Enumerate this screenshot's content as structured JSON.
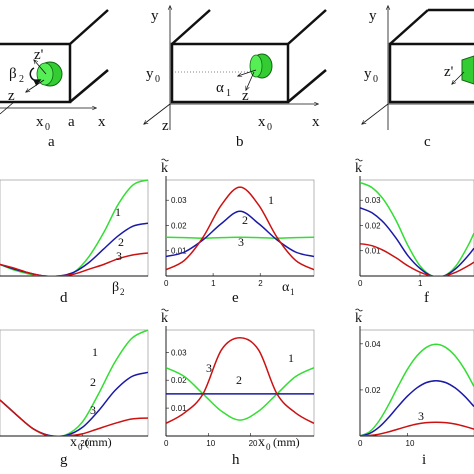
{
  "colors": {
    "green": "#33dd33",
    "blue": "#1a1aa8",
    "red": "#cc1111",
    "axis": "#111111",
    "box": "#111111"
  },
  "top_panels": [
    {
      "letter": "a",
      "labels": [
        "z'",
        "β",
        "2",
        "z",
        "x",
        "0",
        "a",
        "x"
      ]
    },
    {
      "letter": "b",
      "labels": [
        "y",
        "y",
        "0",
        "α",
        "1",
        "z",
        "z",
        "x",
        "0",
        "x"
      ]
    },
    {
      "letter": "c",
      "labels": [
        "y",
        "y",
        "0",
        "z'"
      ]
    }
  ],
  "ylabel": "k",
  "chart_data": [
    {
      "letter": "d",
      "type": "line",
      "xlabel_main": "β",
      "xlabel_sub": "2",
      "xticks": [],
      "yticks": [],
      "xlim": [
        0,
        1
      ],
      "ylim": [
        0,
        1
      ],
      "series": [
        {
          "name": "1",
          "x": [
            0,
            0.1,
            0.2,
            0.3,
            0.4,
            0.5,
            0.6,
            0.7,
            0.8,
            0.9,
            1.0
          ],
          "y": [
            0.12,
            0.06,
            0.02,
            0.0,
            0.0,
            0.04,
            0.2,
            0.45,
            0.75,
            0.95,
            1.0
          ]
        },
        {
          "name": "2",
          "x": [
            0,
            0.1,
            0.2,
            0.3,
            0.4,
            0.5,
            0.6,
            0.7,
            0.8,
            0.9,
            1.0
          ],
          "y": [
            0.12,
            0.07,
            0.03,
            0.0,
            0.0,
            0.04,
            0.14,
            0.28,
            0.42,
            0.52,
            0.55
          ]
        },
        {
          "name": "3",
          "x": [
            0,
            0.1,
            0.2,
            0.3,
            0.4,
            0.5,
            0.6,
            0.7,
            0.8,
            0.9,
            1.0
          ],
          "y": [
            0.12,
            0.08,
            0.03,
            0.0,
            0.0,
            0.02,
            0.07,
            0.12,
            0.18,
            0.22,
            0.24
          ]
        }
      ]
    },
    {
      "letter": "e",
      "type": "line",
      "xlabel_main": "α",
      "xlabel_sub": "1",
      "xticks": [
        "0",
        "1",
        "2"
      ],
      "yticks": [
        "0.01",
        "0.02",
        "0.03"
      ],
      "xlim": [
        0,
        3.1416
      ],
      "ylim": [
        0,
        0.038
      ],
      "series": [
        {
          "name": "1",
          "x": [
            0,
            0.3927,
            0.7854,
            1.1781,
            1.5708,
            1.9635,
            2.3562,
            2.7489,
            3.1416
          ],
          "y": [
            0.0153,
            0.0152,
            0.015,
            0.0152,
            0.0153,
            0.0152,
            0.015,
            0.0152,
            0.0153
          ]
        },
        {
          "name": "2",
          "x": [
            0,
            0.3927,
            0.7854,
            1.1781,
            1.5708,
            1.9635,
            2.3562,
            2.7489,
            3.1416
          ],
          "y": [
            0.0077,
            0.0095,
            0.0143,
            0.0208,
            0.0256,
            0.0208,
            0.0143,
            0.0095,
            0.0077
          ]
        },
        {
          "name": "3",
          "x": [
            0,
            0.3927,
            0.7854,
            1.1781,
            1.5708,
            1.9635,
            2.3562,
            2.7489,
            3.1416
          ],
          "y": [
            0.0025,
            0.0062,
            0.0153,
            0.0282,
            0.0352,
            0.0282,
            0.0153,
            0.0062,
            0.0025
          ]
        }
      ]
    },
    {
      "letter": "f",
      "type": "line",
      "xlabel_main": "",
      "xlabel_sub": "",
      "xticks": [
        "0",
        "1"
      ],
      "yticks": [
        "0.01",
        "0.02",
        "0.03"
      ],
      "xlim": [
        0,
        1.9
      ],
      "ylim": [
        0,
        0.038
      ],
      "series": [
        {
          "name": "",
          "x": [
            0,
            0.2,
            0.4,
            0.6,
            0.8,
            1.0,
            1.2,
            1.4,
            1.6,
            1.8,
            1.9
          ],
          "y": [
            0.037,
            0.035,
            0.03,
            0.022,
            0.012,
            0.004,
            0.0,
            0.0,
            0.004,
            0.012,
            0.017
          ]
        },
        {
          "name": "",
          "x": [
            0,
            0.2,
            0.4,
            0.6,
            0.8,
            1.0,
            1.2,
            1.4,
            1.6,
            1.8,
            1.9
          ],
          "y": [
            0.027,
            0.025,
            0.021,
            0.015,
            0.008,
            0.003,
            0.0,
            0.0,
            0.003,
            0.008,
            0.011
          ]
        },
        {
          "name": "",
          "x": [
            0,
            0.2,
            0.4,
            0.6,
            0.8,
            1.0,
            1.2,
            1.4,
            1.6,
            1.8,
            1.9
          ],
          "y": [
            0.0128,
            0.012,
            0.01,
            0.0072,
            0.004,
            0.0015,
            0.0,
            0.0,
            0.0015,
            0.004,
            0.0055
          ]
        }
      ]
    },
    {
      "letter": "g",
      "type": "line",
      "xlabel_main": "x",
      "xlabel_sub": "0",
      "xlabel_suffix": "(mm)",
      "xticks": [
        "20"
      ],
      "yticks": [],
      "xlim": [
        0,
        36
      ],
      "ylim": [
        0,
        1
      ],
      "series": [
        {
          "name": "1",
          "x": [
            0,
            4,
            8,
            12,
            16,
            20,
            24,
            28,
            32,
            36
          ],
          "y": [
            0.34,
            0.2,
            0.07,
            0.005,
            0.01,
            0.13,
            0.4,
            0.7,
            0.92,
            1.0
          ]
        },
        {
          "name": "2",
          "x": [
            0,
            4,
            8,
            12,
            16,
            20,
            24,
            28,
            32,
            36
          ],
          "y": [
            0.34,
            0.2,
            0.07,
            0.005,
            0.005,
            0.08,
            0.24,
            0.43,
            0.56,
            0.6
          ]
        },
        {
          "name": "3",
          "x": [
            0,
            4,
            8,
            12,
            16,
            20,
            24,
            28,
            32,
            36
          ],
          "y": [
            0.34,
            0.2,
            0.07,
            0.0,
            0.0,
            0.02,
            0.07,
            0.12,
            0.16,
            0.17
          ]
        }
      ]
    },
    {
      "letter": "h",
      "type": "line",
      "xlabel_main": "x",
      "xlabel_sub": "0",
      "xlabel_suffix": "(mm)",
      "xticks": [
        "0",
        "10",
        "20"
      ],
      "yticks": [
        "0.01",
        "0.02",
        "0.03"
      ],
      "xlim": [
        0,
        35
      ],
      "ylim": [
        0,
        0.038
      ],
      "series": [
        {
          "name": "1",
          "x": [
            0,
            4.375,
            8.75,
            13.125,
            17.5,
            21.875,
            26.25,
            30.625,
            35
          ],
          "y": [
            0.0245,
            0.0213,
            0.0151,
            0.0089,
            0.0057,
            0.0089,
            0.0151,
            0.0213,
            0.0245
          ]
        },
        {
          "name": "2",
          "x": [
            0,
            35
          ],
          "y": [
            0.0151,
            0.0151
          ]
        },
        {
          "name": "3",
          "x": [
            0,
            4.375,
            8.75,
            13.125,
            17.5,
            21.875,
            26.25,
            30.625,
            35
          ],
          "y": [
            0.0045,
            0.0083,
            0.0151,
            0.0309,
            0.0352,
            0.0309,
            0.0151,
            0.0083,
            0.0045
          ]
        }
      ]
    },
    {
      "letter": "i",
      "type": "line",
      "xlabel_main": "",
      "xlabel_sub": "",
      "xticks": [
        "0",
        "10"
      ],
      "yticks": [
        "0.02",
        "0.04"
      ],
      "xlim": [
        0,
        24
      ],
      "ylim": [
        0,
        0.046
      ],
      "series": [
        {
          "name": "",
          "x": [
            0,
            2,
            4,
            6,
            8,
            10,
            12,
            14,
            16,
            18,
            20,
            22,
            24
          ],
          "y": [
            0.0,
            0.0018,
            0.0065,
            0.0135,
            0.0215,
            0.029,
            0.0348,
            0.0385,
            0.0398,
            0.0385,
            0.0348,
            0.029,
            0.0215
          ]
        },
        {
          "name": "",
          "x": [
            0,
            2,
            4,
            6,
            8,
            10,
            12,
            14,
            16,
            18,
            20,
            22,
            24
          ],
          "y": [
            0.0,
            0.0011,
            0.0038,
            0.008,
            0.0128,
            0.0173,
            0.0209,
            0.0232,
            0.024,
            0.0232,
            0.0209,
            0.0173,
            0.0128
          ]
        },
        {
          "name": "3",
          "x": [
            0,
            2,
            4,
            6,
            8,
            10,
            12,
            14,
            16,
            18,
            20,
            22,
            24
          ],
          "y": [
            0.0,
            0.0002,
            0.0008,
            0.0018,
            0.003,
            0.0042,
            0.0052,
            0.0058,
            0.006,
            0.0058,
            0.0052,
            0.0042,
            0.003
          ]
        }
      ]
    }
  ]
}
